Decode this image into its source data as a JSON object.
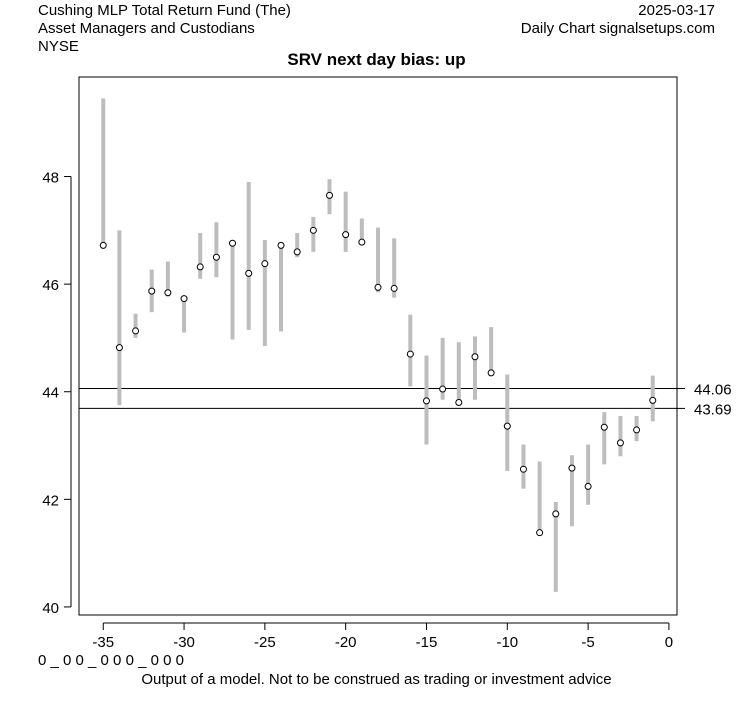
{
  "header": {
    "company": "Cushing MLP Total Return Fund (The)",
    "sector": "Asset Managers and Custodians",
    "exchange": "NYSE",
    "date": "2025-03-17",
    "source": "Daily Chart signalsetups.com"
  },
  "footer": {
    "code": "0 _ 0 0 _ 0 0 0 _ 0 0 0",
    "note": "Output of a model. Not to be construed as trading or investment advice"
  },
  "chart_data": {
    "type": "range",
    "title": "SRV next day bias: up",
    "xlabel": "",
    "ylabel": "",
    "xlim": [
      -36.5,
      0.5
    ],
    "ylim": [
      39.85,
      49.85
    ],
    "x_ticks": [
      -35,
      -30,
      -25,
      -20,
      -15,
      -10,
      -5,
      0
    ],
    "y_ticks": [
      40,
      42,
      44,
      46,
      48
    ],
    "levels": [
      {
        "value": 44.06,
        "label": "44.06"
      },
      {
        "value": 43.69,
        "label": "43.69"
      }
    ],
    "points": [
      {
        "x": -35,
        "low": 46.7,
        "high": 49.45,
        "close": 46.72
      },
      {
        "x": -34,
        "low": 43.75,
        "high": 47.0,
        "close": 44.82
      },
      {
        "x": -33,
        "low": 45.0,
        "high": 45.45,
        "close": 45.13
      },
      {
        "x": -32,
        "low": 45.48,
        "high": 46.27,
        "close": 45.87
      },
      {
        "x": -31,
        "low": 45.77,
        "high": 46.42,
        "close": 45.84
      },
      {
        "x": -30,
        "low": 45.1,
        "high": 45.78,
        "close": 45.73
      },
      {
        "x": -29,
        "low": 46.1,
        "high": 46.95,
        "close": 46.32
      },
      {
        "x": -28,
        "low": 46.13,
        "high": 47.15,
        "close": 46.5
      },
      {
        "x": -27,
        "low": 44.97,
        "high": 46.82,
        "close": 46.76
      },
      {
        "x": -26,
        "low": 45.15,
        "high": 47.9,
        "close": 46.2
      },
      {
        "x": -25,
        "low": 44.85,
        "high": 46.82,
        "close": 46.38
      },
      {
        "x": -24,
        "low": 45.12,
        "high": 46.78,
        "close": 46.72
      },
      {
        "x": -23,
        "low": 46.5,
        "high": 46.95,
        "close": 46.6
      },
      {
        "x": -22,
        "low": 46.6,
        "high": 47.25,
        "close": 47.0
      },
      {
        "x": -21,
        "low": 47.3,
        "high": 47.95,
        "close": 47.65
      },
      {
        "x": -20,
        "low": 46.6,
        "high": 47.72,
        "close": 46.92
      },
      {
        "x": -19,
        "low": 46.73,
        "high": 47.22,
        "close": 46.78
      },
      {
        "x": -18,
        "low": 45.85,
        "high": 47.05,
        "close": 45.94
      },
      {
        "x": -17,
        "low": 45.75,
        "high": 46.85,
        "close": 45.92
      },
      {
        "x": -16,
        "low": 44.1,
        "high": 45.43,
        "close": 44.7
      },
      {
        "x": -15,
        "low": 43.02,
        "high": 44.67,
        "close": 43.83
      },
      {
        "x": -14,
        "low": 43.85,
        "high": 45.0,
        "close": 44.05
      },
      {
        "x": -13,
        "low": 43.78,
        "high": 44.92,
        "close": 43.8
      },
      {
        "x": -12,
        "low": 43.85,
        "high": 45.03,
        "close": 44.65
      },
      {
        "x": -11,
        "low": 44.3,
        "high": 45.2,
        "close": 44.35
      },
      {
        "x": -10,
        "low": 42.53,
        "high": 44.32,
        "close": 43.36
      },
      {
        "x": -9,
        "low": 42.2,
        "high": 43.02,
        "close": 42.56
      },
      {
        "x": -8,
        "low": 41.32,
        "high": 42.7,
        "close": 41.38
      },
      {
        "x": -7,
        "low": 40.28,
        "high": 41.95,
        "close": 41.73
      },
      {
        "x": -6,
        "low": 41.5,
        "high": 42.82,
        "close": 42.58
      },
      {
        "x": -5,
        "low": 41.9,
        "high": 43.02,
        "close": 42.24
      },
      {
        "x": -4,
        "low": 42.65,
        "high": 43.62,
        "close": 43.34
      },
      {
        "x": -3,
        "low": 42.8,
        "high": 43.55,
        "close": 43.05
      },
      {
        "x": -2,
        "low": 43.08,
        "high": 43.55,
        "close": 43.29
      },
      {
        "x": -1,
        "low": 43.45,
        "high": 44.3,
        "close": 43.84
      }
    ]
  }
}
